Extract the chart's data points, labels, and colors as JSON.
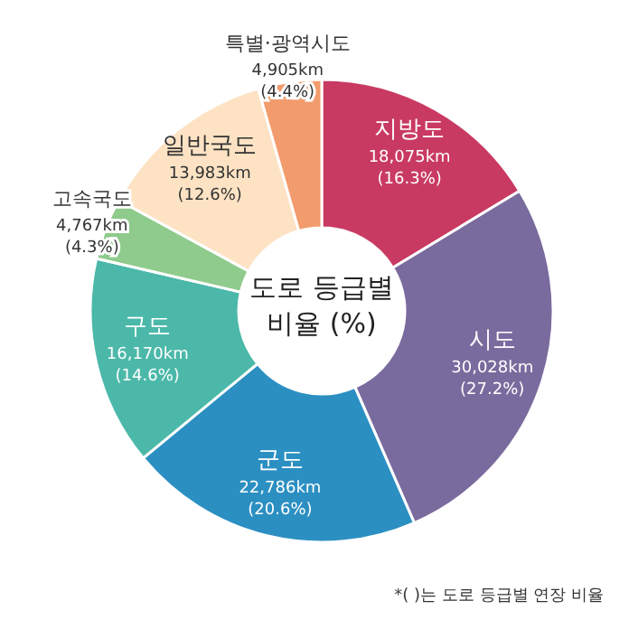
{
  "chart_data": {
    "type": "donut",
    "title": "도로 등급별 비율 (%)",
    "categories": [
      "지방도",
      "시도",
      "군도",
      "구도",
      "고속국도",
      "일반국도",
      "특별·광역시도"
    ],
    "values": [
      18075,
      30028,
      22786,
      16170,
      4767,
      13983,
      4905
    ],
    "value_labels": [
      "18,075km (16.3%)",
      "30,028km (27.2%)",
      "22,786km (20.6%)",
      "16,170km (14.6%)",
      "4,767km (4.3%)",
      "13,983km (12.6%)",
      "4,905km (4.4%)"
    ],
    "colors": [
      "#c93a62",
      "#7a6b9e",
      "#2b8fc2",
      "#4bb8a9",
      "#8fcb8c",
      "#fde3c4",
      "#f29b6c"
    ],
    "annotations": [
      "*( )는 도로 등급별 연장 비율"
    ]
  }
}
